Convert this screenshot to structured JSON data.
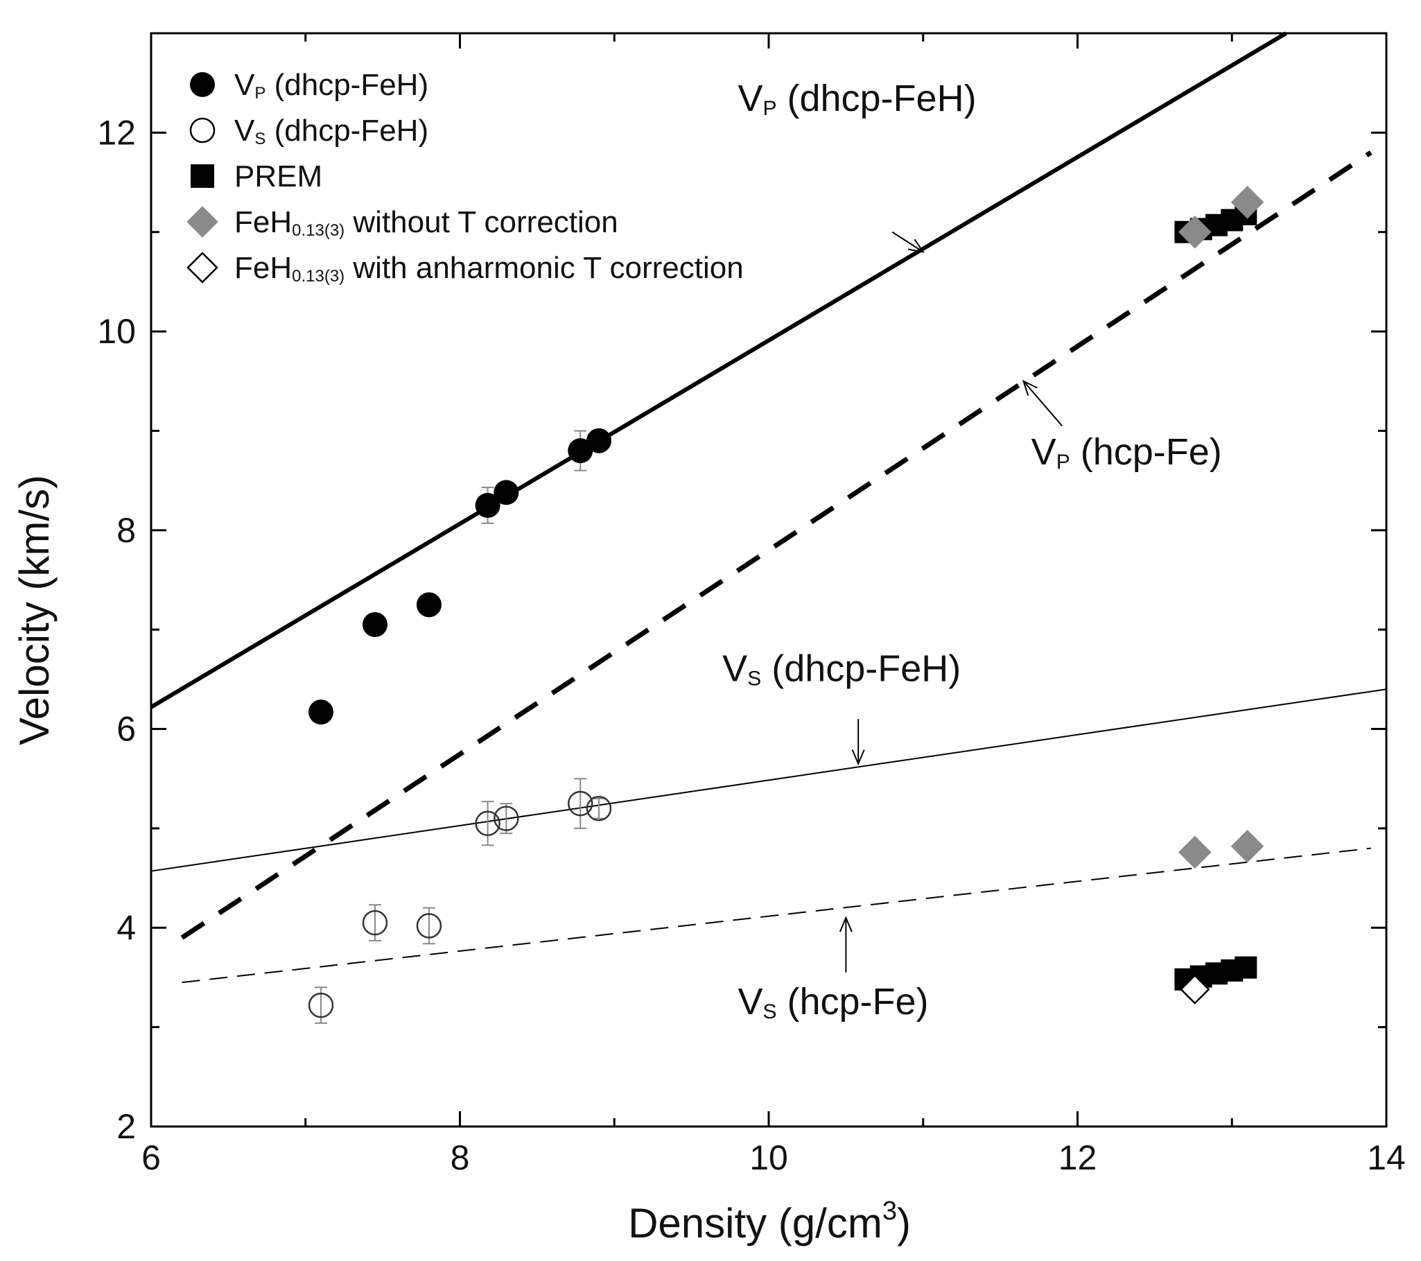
{
  "chart_data": {
    "type": "scatter",
    "title": "",
    "xlabel": "Density (g/cm",
    "xlabel_sup": "3",
    "xlabel_tail": ")",
    "ylabel": "Velocity (km/s)",
    "xlim": [
      6,
      14
    ],
    "ylim": [
      2,
      13
    ],
    "xticks": [
      "6",
      "8",
      "10",
      "12",
      "14"
    ],
    "yticks": [
      "2",
      "4",
      "6",
      "8",
      "10",
      "12"
    ],
    "grid": false,
    "legend_position": "top-left",
    "colors": {
      "black": "#000000",
      "gray": "#8a8a8a",
      "white": "#ffffff",
      "errorbar": "#888888"
    },
    "legend": [
      {
        "marker": "filled-circle",
        "pre": "V",
        "sub": "P",
        "post": " (dhcp-FeH)"
      },
      {
        "marker": "open-circle",
        "pre": "V",
        "sub": "S",
        "post": " (dhcp-FeH)"
      },
      {
        "marker": "filled-square",
        "pre": "PREM",
        "sub": "",
        "post": ""
      },
      {
        "marker": "gray-diamond",
        "pre": "FeH",
        "sub": "0.13(3)",
        "post": " without T correction"
      },
      {
        "marker": "open-diamond",
        "pre": "FeH",
        "sub": "0.13(3)",
        "post": " with anharmonic T correction"
      }
    ],
    "points_vp_dhcp": [
      {
        "x": 7.1,
        "y": 6.17,
        "err": 0
      },
      {
        "x": 7.45,
        "y": 7.05,
        "err": 0
      },
      {
        "x": 7.8,
        "y": 7.25,
        "err": 0
      },
      {
        "x": 8.18,
        "y": 8.25,
        "err": 0.18
      },
      {
        "x": 8.3,
        "y": 8.38,
        "err": 0
      },
      {
        "x": 8.78,
        "y": 8.8,
        "err": 0.2
      },
      {
        "x": 8.9,
        "y": 8.9,
        "err": 0
      }
    ],
    "points_vs_dhcp": [
      {
        "x": 7.1,
        "y": 3.22,
        "err": 0.18
      },
      {
        "x": 7.45,
        "y": 4.05,
        "err": 0.18
      },
      {
        "x": 7.8,
        "y": 4.02,
        "err": 0.18
      },
      {
        "x": 8.18,
        "y": 5.05,
        "err": 0.22
      },
      {
        "x": 8.3,
        "y": 5.1,
        "err": 0.15
      },
      {
        "x": 8.78,
        "y": 5.25,
        "err": 0.25
      },
      {
        "x": 8.9,
        "y": 5.2,
        "err": 0.1
      }
    ],
    "prem": [
      {
        "x": 12.7,
        "y": 11.0
      },
      {
        "x": 12.8,
        "y": 11.03
      },
      {
        "x": 12.9,
        "y": 11.07
      },
      {
        "x": 13.0,
        "y": 11.12
      },
      {
        "x": 13.09,
        "y": 11.18
      },
      {
        "x": 12.7,
        "y": 3.48
      },
      {
        "x": 12.8,
        "y": 3.51
      },
      {
        "x": 12.9,
        "y": 3.54
      },
      {
        "x": 13.0,
        "y": 3.57
      },
      {
        "x": 13.09,
        "y": 3.6
      }
    ],
    "feh_without_T": [
      {
        "x": 12.76,
        "y": 11.0
      },
      {
        "x": 13.1,
        "y": 11.3
      },
      {
        "x": 12.76,
        "y": 4.76
      },
      {
        "x": 13.1,
        "y": 4.82
      }
    ],
    "feh_with_anharmonic_T": [
      {
        "x": 12.76,
        "y": 3.38
      }
    ],
    "lines": [
      {
        "id": "vp-dhcp",
        "style": "solid-thick",
        "x": [
          6.0,
          13.35
        ],
        "y": [
          6.22,
          13.0
        ]
      },
      {
        "id": "vp-hcp",
        "style": "dashed-thick",
        "x": [
          6.2,
          13.9
        ],
        "y": [
          3.9,
          11.8
        ]
      },
      {
        "id": "vs-dhcp",
        "style": "solid-thin",
        "x": [
          6.0,
          14.0
        ],
        "y": [
          4.57,
          6.4
        ]
      },
      {
        "id": "vs-hcp",
        "style": "dashed-thin",
        "x": [
          6.2,
          13.9
        ],
        "y": [
          3.45,
          4.8
        ]
      }
    ],
    "annotations": [
      {
        "id": "vp-dhcp",
        "pre": "V",
        "sub": "P",
        "post": " (dhcp-FeH)",
        "x": 9.8,
        "y": 12.22,
        "arrow_from": [
          10.8,
          11.0
        ],
        "arrow_to": [
          11.0,
          10.8
        ]
      },
      {
        "id": "vp-hcp",
        "pre": "V",
        "sub": "P",
        "post": " (hcp-Fe)",
        "x": 11.7,
        "y": 8.66,
        "arrow_from": [
          11.9,
          9.05
        ],
        "arrow_to": [
          11.65,
          9.5
        ]
      },
      {
        "id": "vs-dhcp",
        "pre": "V",
        "sub": "S",
        "post": " (dhcp-FeH)",
        "x": 9.7,
        "y": 6.48,
        "arrow_from": [
          10.58,
          6.1
        ],
        "arrow_to": [
          10.58,
          5.65
        ]
      },
      {
        "id": "vs-hcp",
        "pre": "V",
        "sub": "S",
        "post": " (hcp-Fe)",
        "x": 9.8,
        "y": 3.13,
        "arrow_from": [
          10.5,
          3.55
        ],
        "arrow_to": [
          10.5,
          4.1
        ]
      }
    ]
  }
}
